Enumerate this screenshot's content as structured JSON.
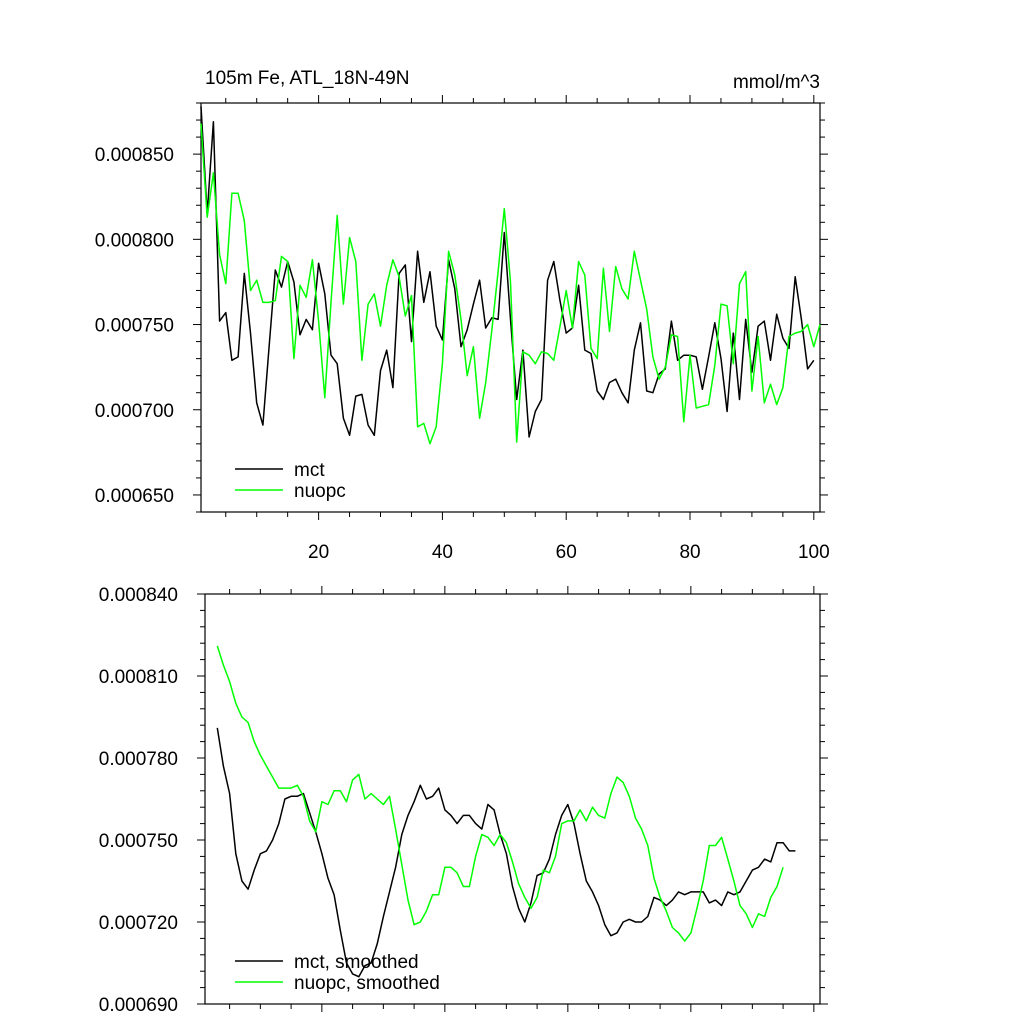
{
  "chart_data": [
    {
      "type": "line",
      "title_left": "105m Fe, ATL_18N-49N",
      "title_right": "mmol/m^3",
      "xlim": [
        1,
        101
      ],
      "ylim": [
        0.00064,
        0.00088
      ],
      "yticks": [
        0.00065,
        0.0007,
        0.00075,
        0.0008,
        0.00085
      ],
      "ytick_labels": [
        "0.000650",
        "0.000700",
        "0.000750",
        "0.000800",
        "0.000850"
      ],
      "xticks": [
        20,
        40,
        60,
        80,
        100
      ],
      "xtick_labels": [
        "20",
        "40",
        "60",
        "80",
        "100"
      ],
      "legend": [
        "mct",
        "nuopc"
      ],
      "series": [
        {
          "name": "mct",
          "color": "#000000",
          "x_start": 1,
          "values": [
            0.000878,
            0.000815,
            0.000869,
            0.000752,
            0.000757,
            0.000729,
            0.000731,
            0.00078,
            0.000745,
            0.000704,
            0.000691,
            0.000737,
            0.000782,
            0.000772,
            0.000787,
            0.000775,
            0.000744,
            0.000753,
            0.000747,
            0.000786,
            0.000768,
            0.000732,
            0.000727,
            0.000695,
            0.000685,
            0.000708,
            0.000709,
            0.000691,
            0.000685,
            0.000723,
            0.000735,
            0.000713,
            0.00078,
            0.000785,
            0.00074,
            0.000793,
            0.000763,
            0.000781,
            0.000749,
            0.000741,
            0.000788,
            0.000771,
            0.000737,
            0.000747,
            0.000762,
            0.000776,
            0.000748,
            0.000754,
            0.000753,
            0.000804,
            0.000753,
            0.000706,
            0.000735,
            0.000684,
            0.000699,
            0.000706,
            0.000776,
            0.000787,
            0.000764,
            0.000745,
            0.000748,
            0.000773,
            0.000735,
            0.000733,
            0.000711,
            0.000706,
            0.000716,
            0.000718,
            0.00071,
            0.000704,
            0.000735,
            0.000751,
            0.000711,
            0.00071,
            0.000721,
            0.000724,
            0.000752,
            0.000729,
            0.000732,
            0.000732,
            0.000731,
            0.000712,
            0.000731,
            0.000751,
            0.00073,
            0.000699,
            0.000745,
            0.000706,
            0.000753,
            0.000722,
            0.000749,
            0.000752,
            0.000729,
            0.000756,
            0.000742,
            0.000736,
            0.000778,
            0.000753,
            0.000724,
            0.000729
          ]
        },
        {
          "name": "nuopc",
          "color": "#00ff00",
          "x_start": 1,
          "values": [
            0.000868,
            0.000813,
            0.000839,
            0.000791,
            0.000774,
            0.000827,
            0.000827,
            0.000811,
            0.00077,
            0.000776,
            0.000763,
            0.000763,
            0.000764,
            0.00079,
            0.000787,
            0.00073,
            0.000773,
            0.000766,
            0.000788,
            0.000752,
            0.000707,
            0.000763,
            0.000814,
            0.000762,
            0.000801,
            0.000787,
            0.000729,
            0.000762,
            0.000768,
            0.000749,
            0.000773,
            0.000788,
            0.000778,
            0.000755,
            0.000767,
            0.00069,
            0.000692,
            0.00068,
            0.00069,
            0.000727,
            0.000793,
            0.000779,
            0.000753,
            0.00072,
            0.000737,
            0.000695,
            0.000716,
            0.000747,
            0.000781,
            0.000818,
            0.000775,
            0.000681,
            0.000734,
            0.000732,
            0.000727,
            0.000734,
            0.000733,
            0.000729,
            0.000749,
            0.00077,
            0.000748,
            0.000787,
            0.000779,
            0.000736,
            0.00073,
            0.000783,
            0.000746,
            0.000784,
            0.000771,
            0.000765,
            0.000793,
            0.000776,
            0.000759,
            0.000731,
            0.000718,
            0.000725,
            0.000744,
            0.000743,
            0.000693,
            0.000732,
            0.000701,
            0.000702,
            0.000703,
            0.000726,
            0.000762,
            0.000761,
            0.000727,
            0.000774,
            0.000781,
            0.000711,
            0.000743,
            0.000704,
            0.000715,
            0.000703,
            0.000713,
            0.000743,
            0.000745,
            0.000746,
            0.00075,
            0.000737,
            0.00075
          ]
        }
      ]
    },
    {
      "type": "line",
      "xlim": [
        1,
        101
      ],
      "ylim": [
        0.00069,
        0.00084
      ],
      "yticks": [
        0.00069,
        0.00072,
        0.00075,
        0.00078,
        0.00081,
        0.00084
      ],
      "ytick_labels": [
        "0.000690",
        "0.000720",
        "0.000750",
        "0.000780",
        "0.000810",
        "0.000840"
      ],
      "xticks": [
        20,
        40,
        60,
        80,
        100
      ],
      "legend": [
        "mct, smoothed",
        "nuopc, smoothed"
      ],
      "series": [
        {
          "name": "mct, smoothed",
          "color": "#000000",
          "x_start": 3,
          "values": [
            0.000791,
            0.000777,
            0.000767,
            0.000745,
            0.000735,
            0.000732,
            0.000739,
            0.000745,
            0.000746,
            0.00075,
            0.000756,
            0.000765,
            0.000766,
            0.000766,
            0.000767,
            0.00076,
            0.000753,
            0.000745,
            0.000736,
            0.00073,
            0.000717,
            0.000705,
            0.000701,
            0.0007,
            0.000704,
            0.000705,
            0.000712,
            0.000722,
            0.000731,
            0.00074,
            0.000752,
            0.000759,
            0.000764,
            0.00077,
            0.000765,
            0.000766,
            0.000769,
            0.000761,
            0.000759,
            0.000756,
            0.000759,
            0.000759,
            0.000756,
            0.000754,
            0.000763,
            0.000761,
            0.000752,
            0.000745,
            0.000733,
            0.000725,
            0.00072,
            0.000727,
            0.000737,
            0.000738,
            0.000743,
            0.000752,
            0.000759,
            0.000763,
            0.000756,
            0.000745,
            0.000735,
            0.000731,
            0.000726,
            0.000719,
            0.000715,
            0.000716,
            0.00072,
            0.000721,
            0.00072,
            0.00072,
            0.000722,
            0.000729,
            0.000728,
            0.000726,
            0.000728,
            0.000731,
            0.00073,
            0.000731,
            0.000731,
            0.000731,
            0.000727,
            0.000728,
            0.000726,
            0.000731,
            0.00073,
            0.000731,
            0.000735,
            0.000739,
            0.00074,
            0.000743,
            0.000742,
            0.000749,
            0.000749,
            0.000746,
            0.000746
          ]
        },
        {
          "name": "nuopc, smoothed",
          "color": "#00ff00",
          "x_start": 3,
          "values": [
            0.000821,
            0.000814,
            0.000808,
            0.0008,
            0.000795,
            0.000793,
            0.000786,
            0.000781,
            0.000777,
            0.000773,
            0.000769,
            0.000769,
            0.000769,
            0.00077,
            0.000766,
            0.000757,
            0.000753,
            0.000764,
            0.000763,
            0.000768,
            0.000768,
            0.000764,
            0.000772,
            0.000774,
            0.000765,
            0.000767,
            0.000765,
            0.000763,
            0.000766,
            0.000754,
            0.000741,
            0.000728,
            0.000719,
            0.00072,
            0.000724,
            0.00073,
            0.00073,
            0.00074,
            0.00074,
            0.000738,
            0.000733,
            0.000733,
            0.000744,
            0.000752,
            0.000751,
            0.000748,
            0.000752,
            0.000749,
            0.000742,
            0.000734,
            0.000729,
            0.000725,
            0.000729,
            0.000739,
            0.000738,
            0.000744,
            0.000756,
            0.000757,
            0.000757,
            0.000761,
            0.000757,
            0.000762,
            0.000759,
            0.000758,
            0.000767,
            0.000773,
            0.000771,
            0.000766,
            0.000758,
            0.000754,
            0.000748,
            0.000736,
            0.000729,
            0.000724,
            0.000718,
            0.000716,
            0.000713,
            0.000716,
            0.000725,
            0.000735,
            0.000748,
            0.000748,
            0.000751,
            0.000743,
            0.000735,
            0.000726,
            0.000723,
            0.000718,
            0.000723,
            0.000722,
            0.000729,
            0.000733,
            0.00074
          ]
        }
      ]
    }
  ]
}
